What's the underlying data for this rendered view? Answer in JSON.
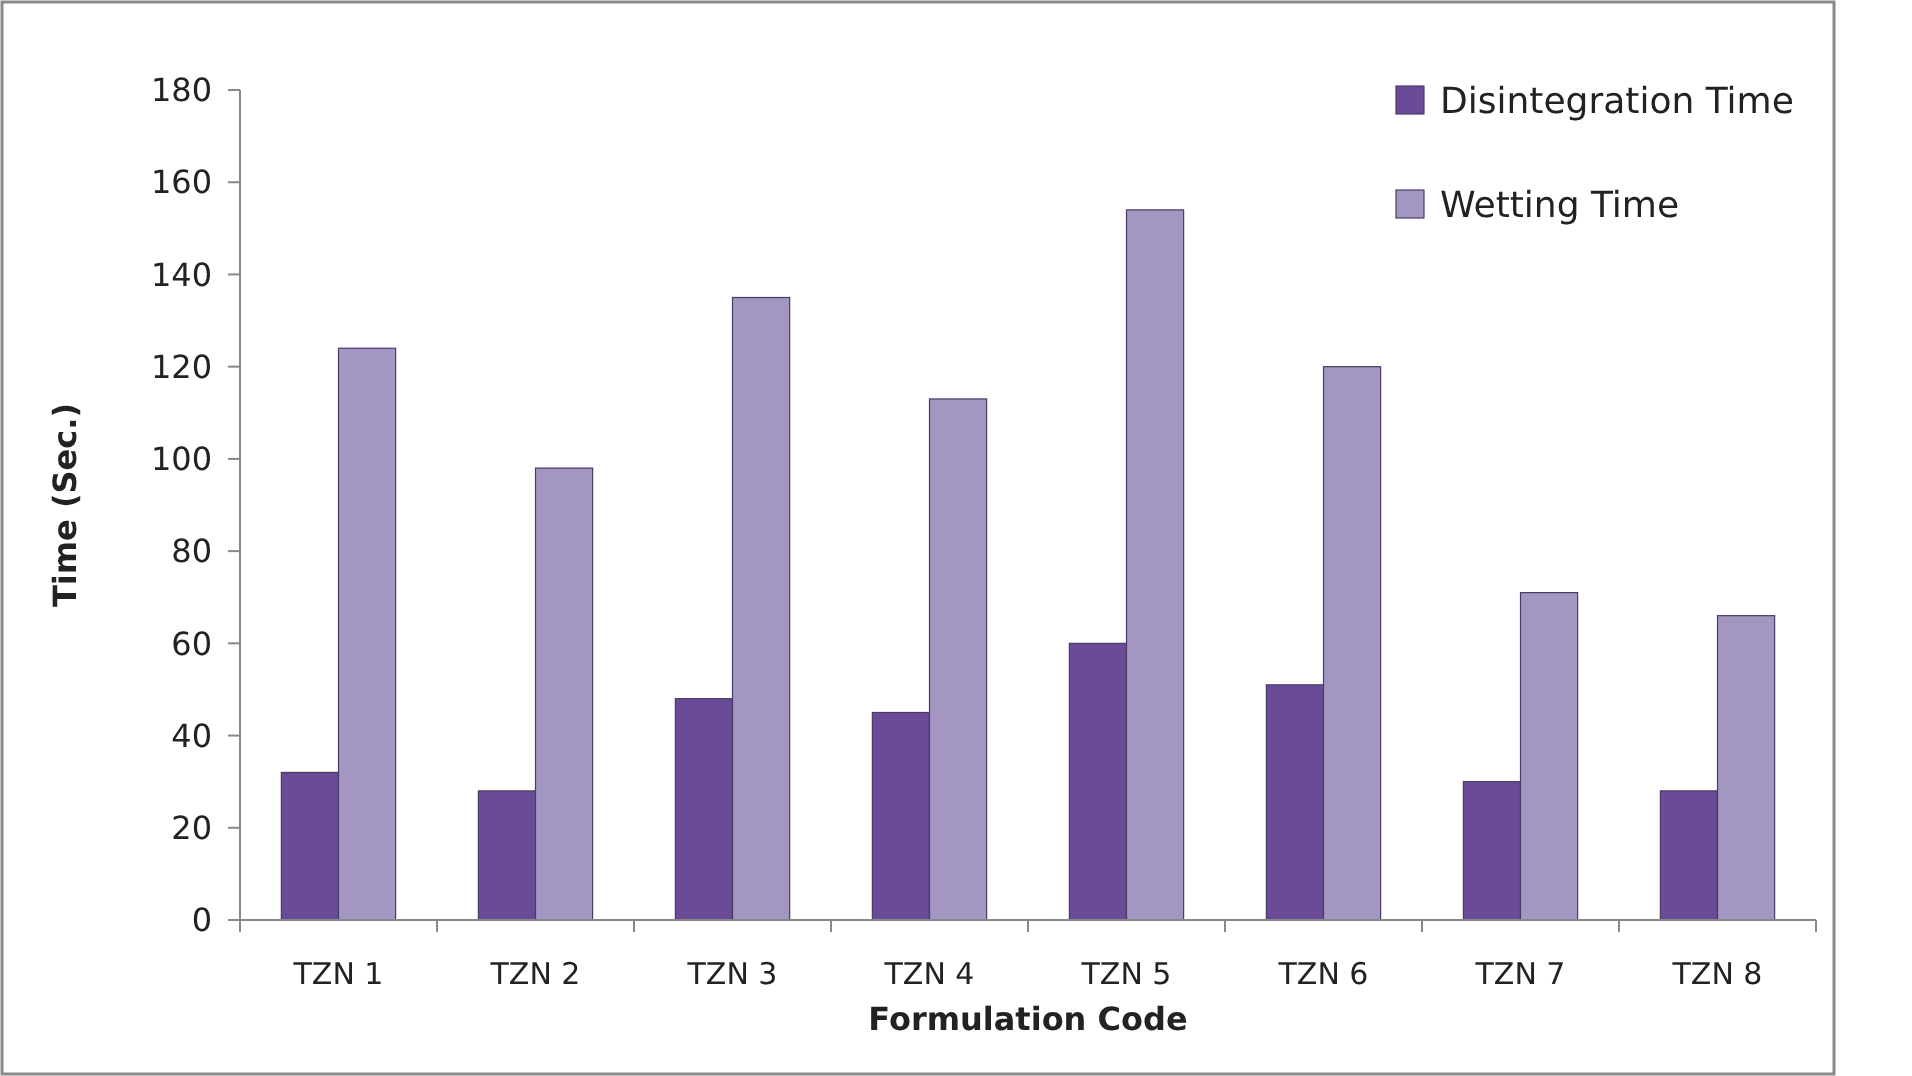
{
  "chart_data": {
    "type": "bar",
    "xlabel": "Formulation Code",
    "ylabel": "Time (Sec.)",
    "categories": [
      "TZN 1",
      "TZN 2",
      "TZN 3",
      "TZN 4",
      "TZN 5",
      "TZN 6",
      "TZN 7",
      "TZN 8"
    ],
    "series": [
      {
        "name": "Disintegration Time",
        "color": "#6a4b98",
        "values": [
          32,
          28,
          48,
          45,
          60,
          51,
          30,
          28
        ]
      },
      {
        "name": "Wetting Time",
        "color": "#a496c2",
        "values": [
          124,
          98,
          135,
          113,
          154,
          120,
          71,
          66
        ]
      }
    ],
    "ylim": [
      0,
      180
    ],
    "yticks": [
      0,
      20,
      40,
      60,
      80,
      100,
      120,
      140,
      160,
      180
    ],
    "grid": false,
    "legend": "top right"
  }
}
